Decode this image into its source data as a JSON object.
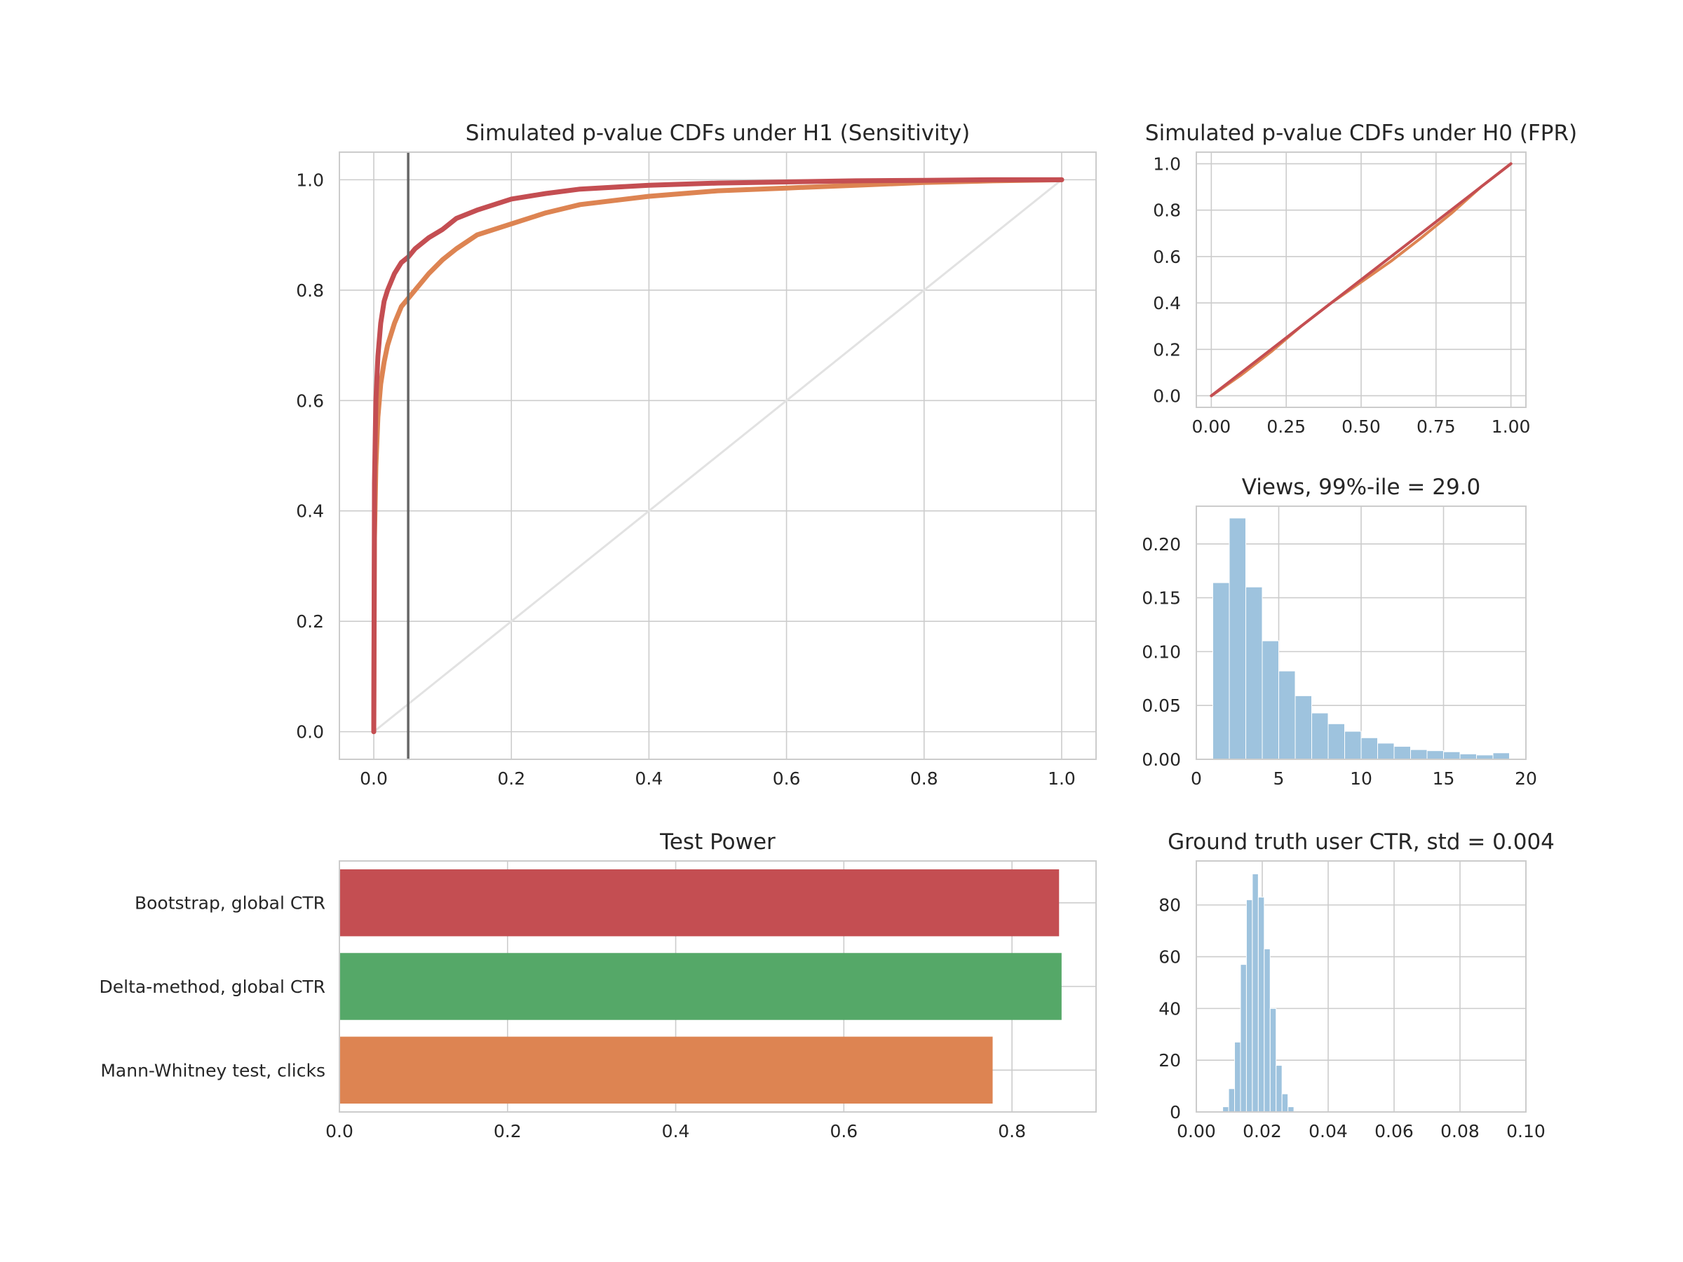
{
  "colors": {
    "bootstrap": "#c44e52",
    "delta": "#55a868",
    "mannwhitney": "#dd8452",
    "hist": "#9ec3de",
    "diagonal": "#e2e2e2",
    "alpha_line": "#666666"
  },
  "chart_data": [
    {
      "id": "h1",
      "type": "line",
      "title": "Simulated p-value CDFs under H1 (Sensitivity)",
      "xlim": [
        -0.05,
        1.05
      ],
      "ylim": [
        -0.05,
        1.05
      ],
      "xticks": [
        "0.0",
        "0.2",
        "0.4",
        "0.6",
        "0.8",
        "1.0"
      ],
      "yticks": [
        "0.0",
        "0.2",
        "0.4",
        "0.6",
        "0.8",
        "1.0"
      ],
      "grid": true,
      "vline": 0.05,
      "diagonal": true,
      "series": [
        {
          "color_key": "mannwhitney",
          "x": [
            0,
            0.001,
            0.003,
            0.006,
            0.01,
            0.015,
            0.02,
            0.03,
            0.04,
            0.05,
            0.06,
            0.08,
            0.1,
            0.12,
            0.15,
            0.2,
            0.25,
            0.3,
            0.4,
            0.5,
            0.6,
            0.7,
            0.8,
            0.9,
            1.0
          ],
          "y": [
            0,
            0.35,
            0.48,
            0.57,
            0.63,
            0.67,
            0.7,
            0.74,
            0.77,
            0.785,
            0.8,
            0.83,
            0.855,
            0.875,
            0.9,
            0.92,
            0.94,
            0.955,
            0.97,
            0.98,
            0.985,
            0.99,
            0.995,
            0.998,
            1.0
          ]
        },
        {
          "color_key": "bootstrap",
          "x": [
            0,
            0.001,
            0.003,
            0.006,
            0.01,
            0.015,
            0.02,
            0.03,
            0.04,
            0.05,
            0.06,
            0.08,
            0.1,
            0.12,
            0.15,
            0.2,
            0.25,
            0.3,
            0.4,
            0.5,
            0.6,
            0.7,
            0.8,
            0.9,
            1.0
          ],
          "y": [
            0,
            0.45,
            0.6,
            0.68,
            0.74,
            0.78,
            0.8,
            0.83,
            0.85,
            0.86,
            0.875,
            0.895,
            0.91,
            0.93,
            0.945,
            0.965,
            0.975,
            0.983,
            0.99,
            0.994,
            0.996,
            0.998,
            0.999,
            1.0,
            1.0
          ]
        }
      ]
    },
    {
      "id": "h0",
      "type": "line",
      "title": "Simulated p-value CDFs under H0 (FPR)",
      "xlim": [
        -0.05,
        1.05
      ],
      "ylim": [
        -0.05,
        1.05
      ],
      "xticks": [
        "0.00",
        "0.25",
        "0.50",
        "0.75",
        "1.00"
      ],
      "yticks": [
        "0.0",
        "0.2",
        "0.4",
        "0.6",
        "0.8",
        "1.0"
      ],
      "grid": true,
      "series": [
        {
          "color_key": "mannwhitney",
          "x": [
            0,
            0.1,
            0.2,
            0.3,
            0.4,
            0.5,
            0.6,
            0.7,
            0.8,
            0.9,
            1.0
          ],
          "y": [
            0,
            0.09,
            0.19,
            0.3,
            0.4,
            0.49,
            0.58,
            0.68,
            0.785,
            0.9,
            1.0
          ]
        },
        {
          "color_key": "bootstrap",
          "x": [
            0,
            0.1,
            0.2,
            0.3,
            0.4,
            0.5,
            0.6,
            0.7,
            0.8,
            0.9,
            1.0
          ],
          "y": [
            0,
            0.1,
            0.2,
            0.3,
            0.4,
            0.5,
            0.6,
            0.7,
            0.8,
            0.9,
            1.0
          ]
        }
      ]
    },
    {
      "id": "views",
      "type": "bar",
      "title": "Views, 99%-ile = 29.0",
      "xlim": [
        0,
        20
      ],
      "ylim": [
        0,
        0.235
      ],
      "xticks": [
        "0",
        "5",
        "10",
        "15",
        "20"
      ],
      "yticks": [
        "0.00",
        "0.05",
        "0.10",
        "0.15",
        "0.20"
      ],
      "grid": true,
      "bin_edges": [
        1,
        2,
        3,
        4,
        5,
        6,
        7,
        8,
        9,
        10,
        11,
        12,
        13,
        14,
        15,
        16,
        17,
        18,
        19
      ],
      "values": [
        0.164,
        0.224,
        0.16,
        0.11,
        0.082,
        0.059,
        0.043,
        0.033,
        0.026,
        0.02,
        0.015,
        0.012,
        0.009,
        0.008,
        0.007,
        0.005,
        0.004,
        0.006
      ]
    },
    {
      "id": "power",
      "type": "bar",
      "orientation": "horizontal",
      "title": "Test Power",
      "xlim": [
        0,
        0.9
      ],
      "xticks": [
        "0.0",
        "0.2",
        "0.4",
        "0.6",
        "0.8"
      ],
      "categories": [
        "Bootstrap, global CTR",
        "Delta-method, global CTR",
        "Mann-Whitney test, clicks"
      ],
      "values": [
        0.856,
        0.859,
        0.777
      ],
      "color_keys": [
        "bootstrap",
        "delta",
        "mannwhitney"
      ],
      "grid": true
    },
    {
      "id": "ctr",
      "type": "bar",
      "title": "Ground truth user CTR, std = 0.004",
      "xlim": [
        0,
        0.1
      ],
      "ylim": [
        0,
        97
      ],
      "xticks": [
        "0.00",
        "0.02",
        "0.04",
        "0.06",
        "0.08",
        "0.10"
      ],
      "yticks": [
        "0",
        "20",
        "40",
        "60",
        "80"
      ],
      "grid": true,
      "bin_start": 0.008,
      "bin_width": 0.0018,
      "values": [
        2,
        9,
        27,
        57,
        82,
        92,
        83,
        63,
        40,
        18,
        7,
        2
      ]
    }
  ]
}
